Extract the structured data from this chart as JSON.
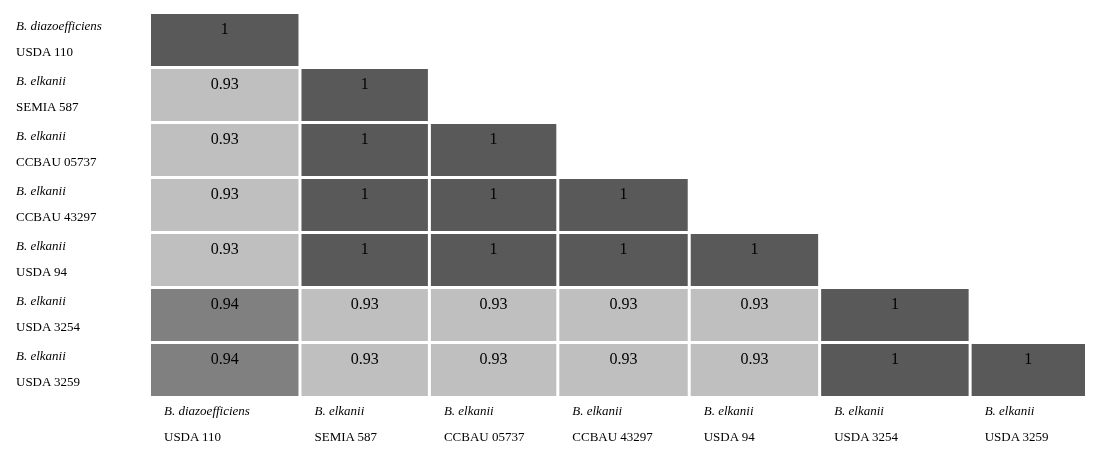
{
  "chart_data": {
    "type": "heatmap",
    "categories": [
      "B. diazoefficiens\nUSDA 110",
      "B. elkanii\nSEMIA 587",
      "B. elkanii\nCCBAU 05737",
      "B. elkanii\nCCBAU 43297",
      "B. elkanii\nUSDA 94",
      "B. elkanii\nUSDA 3254",
      "B. elkanii\nUSDA 3259"
    ],
    "y_categories": [
      "B. diazoefficiens\nUSDA 110",
      "B. elkanii\nSEMIA 587",
      "B. elkanii\nCCBAU 05737",
      "B. elkanii\nCCBAU 43297",
      "B. elkanii\nUSDA 94",
      "B. elkanii\nUSDA 3254",
      "B. elkanii\nUSDA 3259"
    ],
    "cells": [
      [
        1,
        null,
        null,
        null,
        null,
        null,
        null
      ],
      [
        0.93,
        1,
        null,
        null,
        null,
        null,
        null
      ],
      [
        0.93,
        1,
        1,
        null,
        null,
        null,
        null
      ],
      [
        0.93,
        1,
        1,
        1,
        null,
        null,
        null
      ],
      [
        0.93,
        1,
        1,
        1,
        1,
        null,
        null
      ],
      [
        0.94,
        0.93,
        0.93,
        0.93,
        0.93,
        1,
        null
      ],
      [
        0.94,
        0.93,
        0.93,
        0.93,
        0.93,
        1,
        1
      ]
    ],
    "data_labels": true
  }
}
